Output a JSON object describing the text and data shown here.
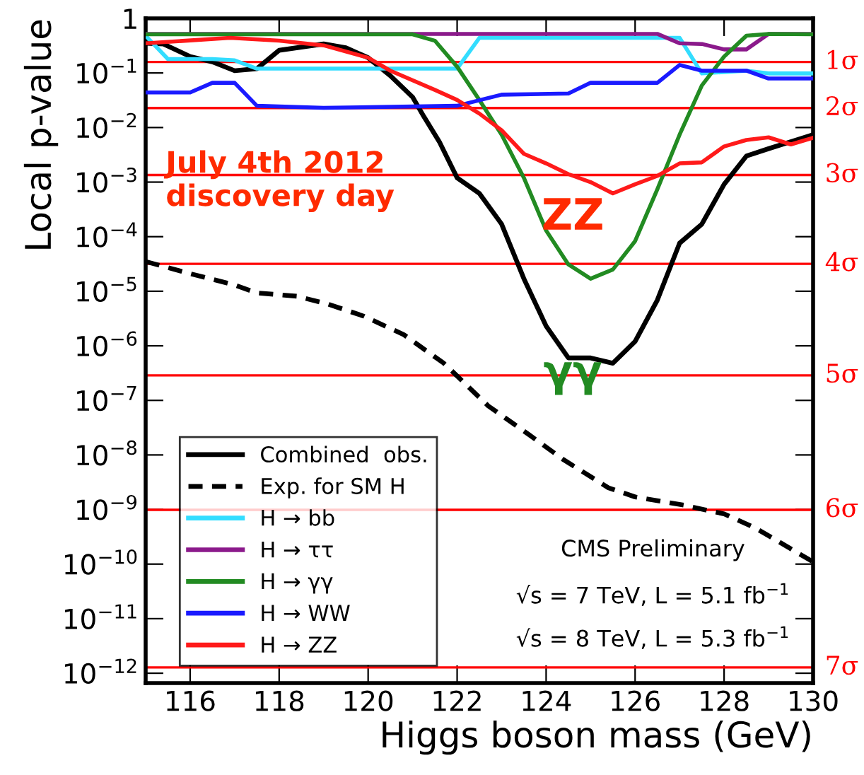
{
  "chart_data": {
    "type": "line",
    "xlabel": "Higgs boson mass (GeV)",
    "ylabel": "Local p-value",
    "log": "y",
    "grid": false,
    "legend": "bottom left",
    "xlim": [
      115,
      130
    ],
    "xticks": [
      116,
      118,
      120,
      122,
      124,
      126,
      128,
      130
    ],
    "ylim": [
      6.6e-13,
      1
    ],
    "yticks": [
      1,
      {
        "value": 0.1,
        "label": "10$^{−1}$"
      },
      {
        "value": 0.01,
        "label": "10$^{−2}$"
      },
      {
        "value": 0.001,
        "label": "10$^{−3}$"
      },
      {
        "value": 0.0001,
        "label": "10$^{−4}$"
      },
      {
        "value": 1e-05,
        "label": "10$^{−5}$"
      },
      {
        "value": 1e-06,
        "label": "10$^{−6}$"
      },
      {
        "value": 1e-07,
        "label": "10$^{−7}$"
      },
      {
        "value": 1e-08,
        "label": "10$^{−8}$"
      },
      {
        "value": 1e-09,
        "label": "10$^{−9}$"
      },
      {
        "value": 1e-10,
        "label": "10$^{−10}$"
      },
      {
        "value": 1e-11,
        "label": "10$^{−11}$"
      },
      {
        "value": 1e-12,
        "label": "10$^{−12}$"
      }
    ],
    "series": [
      {
        "name": "Combined  obs.",
        "color": "#000000",
        "line_style": "solid",
        "x": [
          115,
          115.4,
          116,
          116.5,
          117,
          117.5,
          118,
          119,
          119.5,
          120,
          120.5,
          121,
          121.25,
          121.6,
          122,
          122.5,
          123,
          123.5,
          124,
          124.5,
          125,
          125.5,
          126,
          126.5,
          127,
          127.5,
          128,
          128.5,
          129,
          129.5,
          130
        ],
        "values": [
          0.35,
          0.34,
          0.2,
          0.16,
          0.11,
          0.12,
          0.26,
          0.34,
          0.29,
          0.19,
          0.089,
          0.036,
          0.016,
          0.0055,
          0.0012,
          0.00062,
          0.00017,
          1.7e-05,
          2.3e-06,
          6e-07,
          6e-07,
          4.8e-07,
          1.2e-06,
          6.9e-06,
          7.6e-05,
          0.00017,
          0.00091,
          0.003,
          0.0041,
          0.0055,
          0.0074
        ]
      },
      {
        "name": "Exp. for SM H",
        "color": "#000000",
        "line_style": "dashed",
        "x": [
          115,
          116,
          117,
          117.5,
          118.4,
          119.1,
          119.9,
          120.8,
          121.7,
          122.7,
          123.6,
          124.4,
          125.4,
          126,
          127.1,
          128,
          128.7,
          129.5,
          130
        ],
        "values": [
          3.5e-05,
          2.1e-05,
          1.3e-05,
          9.3e-06,
          8.1e-06,
          5.8e-06,
          3.5e-06,
          1.6e-06,
          4.8e-07,
          7.9e-08,
          2.4e-08,
          8.1e-09,
          2.5e-09,
          1.7e-09,
          1.2e-09,
          8.3e-10,
          4.6e-10,
          1.9e-10,
          1.1e-10
        ]
      },
      {
        "name": "H → bb",
        "color": "#33ddff",
        "line_style": "solid",
        "x": [
          115,
          115.5,
          116.5,
          117,
          117.5,
          122,
          122.5,
          127,
          127.5,
          128.5,
          129,
          130
        ],
        "values": [
          0.48,
          0.18,
          0.18,
          0.17,
          0.12,
          0.12,
          0.44,
          0.44,
          0.098,
          0.11,
          0.098,
          0.098
        ]
      },
      {
        "name": "H → ττ",
        "color": "#8b1a8b",
        "line_style": "solid",
        "x": [
          115,
          126.5,
          127,
          127.5,
          128,
          128.5,
          129,
          130
        ],
        "values": [
          0.52,
          0.52,
          0.35,
          0.34,
          0.27,
          0.27,
          0.52,
          0.52
        ]
      },
      {
        "name": "H → γγ",
        "color": "#228b22",
        "line_style": "solid",
        "x": [
          115,
          121,
          121.5,
          122,
          122.5,
          123,
          123.5,
          124,
          124.5,
          125,
          125.5,
          126,
          126.5,
          127,
          127.5,
          128,
          128.5,
          129,
          130
        ],
        "values": [
          0.51,
          0.51,
          0.39,
          0.13,
          0.032,
          0.0074,
          0.0012,
          0.00013,
          3.1e-05,
          1.7e-05,
          2.5e-05,
          8.3e-05,
          0.00074,
          0.0074,
          0.059,
          0.2,
          0.48,
          0.52,
          0.51
        ]
      },
      {
        "name": "H → WW",
        "color": "#1a1aff",
        "line_style": "solid",
        "x": [
          115,
          116,
          116.5,
          117,
          117.5,
          119,
          122,
          123,
          124.5,
          125,
          126.5,
          127,
          127.5,
          128.5,
          129,
          130
        ],
        "values": [
          0.044,
          0.044,
          0.066,
          0.066,
          0.025,
          0.023,
          0.025,
          0.04,
          0.042,
          0.066,
          0.066,
          0.14,
          0.11,
          0.11,
          0.079,
          0.079
        ]
      },
      {
        "name": "H → ZZ",
        "color": "#ff1a1a",
        "line_style": "solid",
        "x": [
          115,
          116.9,
          118,
          119,
          120,
          120.5,
          121.5,
          122,
          122.5,
          123,
          123.5,
          124,
          124.5,
          125,
          125.5,
          126,
          126.5,
          127,
          127.5,
          128,
          128.5,
          129,
          129.5,
          130
        ],
        "values": [
          0.35,
          0.44,
          0.39,
          0.32,
          0.19,
          0.11,
          0.049,
          0.032,
          0.018,
          0.0089,
          0.0033,
          0.0022,
          0.0014,
          0.001,
          0.00062,
          0.00091,
          0.0013,
          0.0022,
          0.0023,
          0.0045,
          0.0059,
          0.0066,
          0.0049,
          0.0065
        ]
      }
    ],
    "ref_lines": [
      {
        "axis": "y",
        "value": 0.159,
        "label": "1σ",
        "color": "#ff0000"
      },
      {
        "axis": "y",
        "value": 0.0228,
        "label": "2σ",
        "color": "#ff0000"
      },
      {
        "axis": "y",
        "value": 0.00135,
        "label": "3σ",
        "color": "#ff0000"
      },
      {
        "axis": "y",
        "value": 3.17e-05,
        "label": "4σ",
        "color": "#ff0000"
      },
      {
        "axis": "y",
        "value": 2.87e-07,
        "label": "5σ",
        "color": "#ff0000"
      },
      {
        "axis": "y",
        "value": 9.87e-10,
        "label": "6σ",
        "color": "#ff0000"
      },
      {
        "axis": "y",
        "value": 1.28e-12,
        "label": "7σ",
        "color": "#ff0000"
      }
    ],
    "annotations": [
      "July 4th 2012\ndiscovery day",
      "ZZ",
      "γγ",
      "CMS Preliminary",
      "√s = 7 TeV, L = 5.1 fb$^{−1}$",
      "√s = 8 TeV, L = 5.3 fb$^{−1}$"
    ]
  }
}
